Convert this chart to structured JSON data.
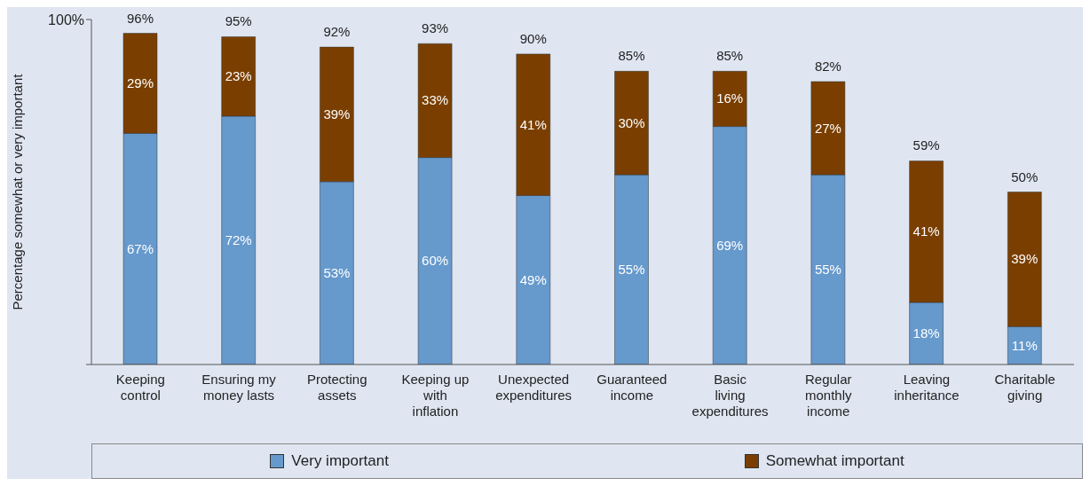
{
  "chart_data": {
    "type": "bar",
    "stacked": true,
    "ylabel": "Percentage somewhat or very important",
    "categories": [
      "Keeping control",
      "Ensuring my money lasts",
      "Protecting assets",
      "Keeping up with inflation",
      "Unexpected expenditures",
      "Guaranteed income",
      "Basic living expenditures",
      "Regular monthly income",
      "Leaving inheritance",
      "Charitable giving"
    ],
    "series": [
      {
        "name": "Very important",
        "color": "#6699cc",
        "values": [
          67,
          72,
          53,
          60,
          49,
          55,
          69,
          55,
          18,
          11
        ],
        "value_labels": [
          "67%",
          "72%",
          "53%",
          "60%",
          "49%",
          "55%",
          "69%",
          "55%",
          "18%",
          "11%"
        ]
      },
      {
        "name": "Somewhat important",
        "color": "#7a3f00",
        "values": [
          29,
          23,
          39,
          33,
          41,
          30,
          16,
          27,
          41,
          39
        ],
        "value_labels": [
          "29%",
          "23%",
          "39%",
          "33%",
          "41%",
          "30%",
          "16%",
          "27%",
          "41%",
          "39%"
        ]
      }
    ],
    "totals": [
      "96%",
      "95%",
      "92%",
      "93%",
      "90%",
      "85%",
      "85%",
      "82%",
      "59%",
      "50%"
    ],
    "ylim": [
      0,
      100
    ],
    "yticks": [
      0,
      {
        "value": 100,
        "label": "100%"
      }
    ],
    "grid": false,
    "legend": "bottom"
  }
}
